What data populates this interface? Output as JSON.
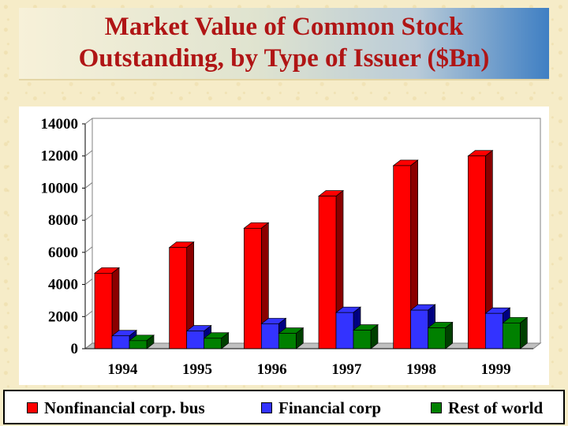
{
  "title": {
    "line1": "Market Value of Common Stock",
    "line2": "Outstanding, by Type of Issuer ($Bn)"
  },
  "chart_data": {
    "type": "bar",
    "style": "3d-clustered",
    "categories": [
      "1994",
      "1995",
      "1996",
      "1997",
      "1998",
      "1999"
    ],
    "series": [
      {
        "name": "Nonfinancial corp. bus",
        "color": "#ff0000",
        "side_color": "#8b0000",
        "values": [
          4700,
          6300,
          7500,
          9500,
          11400,
          12000
        ]
      },
      {
        "name": "Financial corp",
        "color": "#3333ff",
        "side_color": "#000080",
        "values": [
          800,
          1100,
          1550,
          2250,
          2400,
          2200
        ]
      },
      {
        "name": "Rest of world",
        "color": "#008000",
        "side_color": "#004000",
        "values": [
          500,
          650,
          950,
          1150,
          1300,
          1600
        ]
      }
    ],
    "yticks": [
      "0",
      "2000",
      "4000",
      "6000",
      "8000",
      "10000",
      "12000",
      "14000"
    ],
    "ylim": [
      0,
      14000
    ],
    "grid": false,
    "legend_position": "bottom"
  }
}
